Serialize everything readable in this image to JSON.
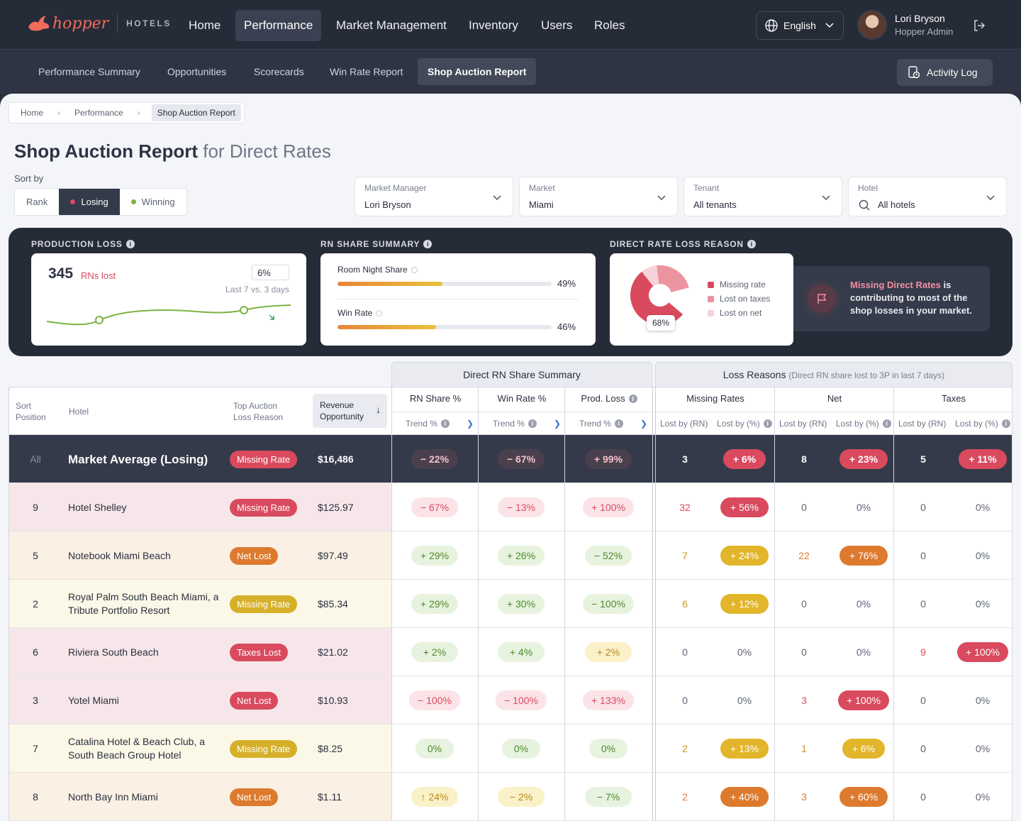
{
  "brand": {
    "name": "hopper",
    "product": "HOTELS"
  },
  "nav": {
    "items": [
      "Home",
      "Performance",
      "Market Management",
      "Inventory",
      "Users",
      "Roles"
    ],
    "active": 1
  },
  "language": "English",
  "user": {
    "name": "Lori Bryson",
    "role": "Hopper Admin"
  },
  "subnav": {
    "items": [
      "Performance Summary",
      "Opportunities",
      "Scorecards",
      "Win Rate Report",
      "Shop Auction Report"
    ],
    "active": 4,
    "activity_log": "Activity Log"
  },
  "breadcrumb": [
    "Home",
    "Performance",
    "Shop Auction Report"
  ],
  "title": {
    "main": "Shop Auction Report",
    "sub": "for Direct Rates"
  },
  "sort": {
    "label": "Sort by",
    "options": [
      "Rank",
      "Losing",
      "Winning"
    ],
    "active": 1
  },
  "filters": [
    {
      "label": "Market Manager",
      "value": "Lori Bryson"
    },
    {
      "label": "Market",
      "value": "Miami"
    },
    {
      "label": "Tenant",
      "value": "All tenants"
    },
    {
      "label": "Hotel",
      "value": "All hotels"
    }
  ],
  "production_loss": {
    "title": "PRODUCTION LOSS",
    "value": "345",
    "unit": "RNs lost",
    "change": "6%",
    "comparison": "Last 7 vs. 3 days"
  },
  "rn_share_summary": {
    "title": "RN SHARE SUMMARY",
    "rows": [
      {
        "label": "Room Night Share",
        "value": "49%",
        "pct": 49
      },
      {
        "label": "Win Rate",
        "value": "46%",
        "pct": 46
      }
    ]
  },
  "direct_rate_loss": {
    "title": "DIRECT RATE LOSS REASON",
    "center_label": "68%",
    "legend": [
      {
        "label": "Missing rate",
        "color": "#d94a5f"
      },
      {
        "label": "Lost on taxes",
        "color": "#ec93a0"
      },
      {
        "label": "Lost on net",
        "color": "#f6d3d8"
      }
    ],
    "insight": {
      "highlight": "Missing Direct Rates",
      "text": " is contributing to most of the shop losses in your market."
    }
  },
  "table": {
    "group_headers": {
      "share": "Direct RN Share Summary",
      "loss": "Loss Reasons",
      "loss_sub": "(Direct RN share lost to 3P in last 7 days)"
    },
    "headers": {
      "sort_position": [
        "Sort",
        "Position"
      ],
      "hotel": "Hotel",
      "top_reason": [
        "Top Auction",
        "Loss Reason"
      ],
      "revenue": [
        "Revenue",
        "Opportunity"
      ],
      "rn_share": "RN Share %",
      "win_rate": "Win Rate %",
      "prod_loss": "Prod. Loss",
      "trend": "Trend %",
      "missing": "Missing Rates",
      "net": "Net",
      "taxes": "Taxes",
      "lost_rn": "Lost by (RN)",
      "lost_pct": "Lost by (%)"
    },
    "average": {
      "pos": "All",
      "name": "Market Average (Losing)",
      "reason": "Missing Rate",
      "revenue": "$16,486",
      "rn": "− 22%",
      "win": "− 67%",
      "prod": "+ 99%",
      "m_rn": "3",
      "m_pct": "+ 6%",
      "n_rn": "8",
      "n_pct": "+ 23%",
      "t_rn": "5",
      "t_pct": "+ 11%"
    },
    "rows": [
      {
        "pos": "9",
        "name": "Hotel Shelley",
        "reason": "Missing Rate",
        "revenue": "$125.97",
        "rn": "− 67%",
        "win": "− 13%",
        "prod": "+ 100%",
        "m_rn": "32",
        "m_pct": "+ 56%",
        "n_rn": "0",
        "n_pct": "0%",
        "t_rn": "0",
        "t_pct": "0%"
      },
      {
        "pos": "5",
        "name": "Notebook Miami Beach",
        "reason": "Net Lost",
        "revenue": "$97.49",
        "rn": "+ 29%",
        "win": "+ 26%",
        "prod": "− 52%",
        "m_rn": "7",
        "m_pct": "+ 24%",
        "n_rn": "22",
        "n_pct": "+ 76%",
        "t_rn": "0",
        "t_pct": "0%"
      },
      {
        "pos": "2",
        "name": "Royal Palm South Beach Miami, a Tribute Portfolio Resort",
        "reason": "Missing Rate",
        "revenue": "$85.34",
        "rn": "+ 29%",
        "win": "+ 30%",
        "prod": "− 100%",
        "m_rn": "6",
        "m_pct": "+ 12%",
        "n_rn": "0",
        "n_pct": "0%",
        "t_rn": "0",
        "t_pct": "0%"
      },
      {
        "pos": "6",
        "name": "Riviera South Beach",
        "reason": "Taxes Lost",
        "revenue": "$21.02",
        "rn": "+ 2%",
        "win": "+ 4%",
        "prod": "+ 2%",
        "m_rn": "0",
        "m_pct": "0%",
        "n_rn": "0",
        "n_pct": "0%",
        "t_rn": "9",
        "t_pct": "+ 100%"
      },
      {
        "pos": "3",
        "name": "Yotel Miami",
        "reason": "Net Lost",
        "revenue": "$10.93",
        "rn": "− 100%",
        "win": "− 100%",
        "prod": "+ 133%",
        "m_rn": "0",
        "m_pct": "0%",
        "n_rn": "3",
        "n_pct": "+ 100%",
        "t_rn": "0",
        "t_pct": "0%"
      },
      {
        "pos": "7",
        "name": "Catalina Hotel & Beach Club, a South Beach Group Hotel",
        "reason": "Missing Rate",
        "revenue": "$8.25",
        "rn": "0%",
        "win": "0%",
        "prod": "0%",
        "m_rn": "2",
        "m_pct": "+ 13%",
        "n_rn": "1",
        "n_pct": "+ 6%",
        "t_rn": "0",
        "t_pct": "0%"
      },
      {
        "pos": "8",
        "name": "North Bay Inn Miami",
        "reason": "Net Lost",
        "revenue": "$1.11",
        "rn": "↑ 24%",
        "win": "− 2%",
        "prod": "− 7%",
        "m_rn": "2",
        "m_pct": "+ 40%",
        "n_rn": "3",
        "n_pct": "+ 60%",
        "t_rn": "0",
        "t_pct": "0%"
      }
    ]
  }
}
